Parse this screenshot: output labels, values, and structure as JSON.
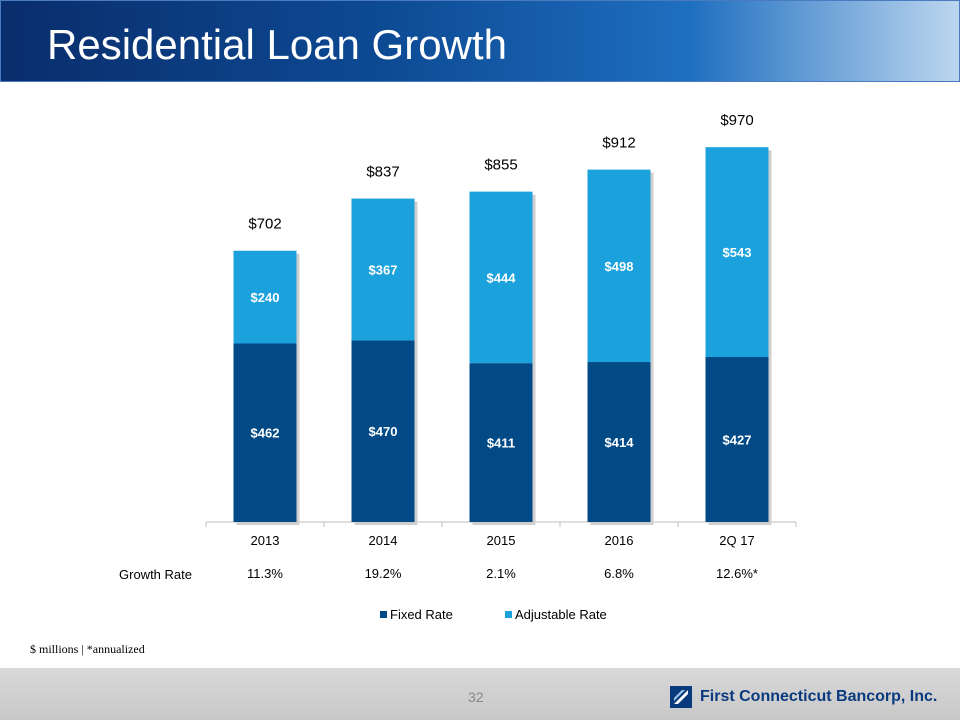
{
  "slide": {
    "title": "Residential Loan Growth",
    "footnote": "$ millions | *annualized",
    "page_number": "32",
    "company": "First Connecticut Bancorp, Inc."
  },
  "colors": {
    "fixed": "#024a86",
    "adjustable": "#1ba1dc",
    "title_bar": "#0d4a94"
  },
  "chart_data": {
    "type": "bar",
    "stacked": true,
    "categories": [
      "2013",
      "2014",
      "2015",
      "2016",
      "2Q 17"
    ],
    "series": [
      {
        "name": "Fixed Rate",
        "values": [
          462,
          470,
          411,
          414,
          427
        ],
        "labels": [
          "$462",
          "$470",
          "$411",
          "$414",
          "$427"
        ]
      },
      {
        "name": "Adjustable Rate",
        "values": [
          240,
          367,
          444,
          498,
          543
        ],
        "labels": [
          "$240",
          "$367",
          "$444",
          "$498",
          "$543"
        ]
      }
    ],
    "totals": [
      "$702",
      "$837",
      "$855",
      "$912",
      "$970"
    ],
    "growth_rate": {
      "label": "Growth Rate",
      "values": [
        "11.3%",
        "19.2%",
        "2.1%",
        "6.8%",
        "12.6%*"
      ]
    },
    "legend_position": "bottom",
    "grid": false
  }
}
